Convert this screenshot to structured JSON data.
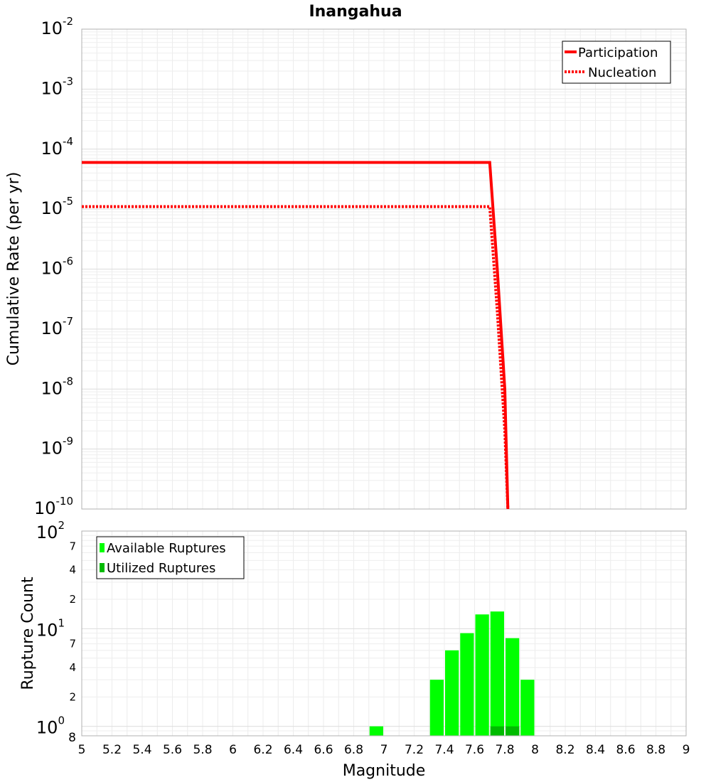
{
  "chart_data": [
    {
      "type": "line",
      "title": "Inangahua",
      "xlabel": "",
      "ylabel": "Cumulative Rate (per yr)",
      "xlim": [
        5,
        9
      ],
      "ylim": [
        1e-10,
        0.01
      ],
      "yscale": "log",
      "grid": true,
      "legend_position": "top-right",
      "y_tick_labels": [
        {
          "base": "10",
          "exp": "-2",
          "value": 0.01
        },
        {
          "base": "10",
          "exp": "-3",
          "value": 0.001
        },
        {
          "base": "10",
          "exp": "-4",
          "value": 0.0001
        },
        {
          "base": "10",
          "exp": "-5",
          "value": 1e-05
        },
        {
          "base": "10",
          "exp": "-6",
          "value": 1e-06
        },
        {
          "base": "10",
          "exp": "-7",
          "value": 1e-07
        },
        {
          "base": "10",
          "exp": "-8",
          "value": 1e-08
        },
        {
          "base": "10",
          "exp": "-9",
          "value": 1e-09
        },
        {
          "base": "10",
          "exp": "-10",
          "value": 1e-10
        }
      ],
      "series": [
        {
          "name": "Participation",
          "style": "solid",
          "color": "#ff0000",
          "x": [
            5.0,
            7.7,
            7.75,
            7.8,
            7.82
          ],
          "y": [
            6e-05,
            6e-05,
            1e-06,
            1e-08,
            1e-10
          ]
        },
        {
          "name": "Nucleation",
          "style": "dotted",
          "color": "#ff0000",
          "x": [
            5.0,
            7.7,
            7.75,
            7.8,
            7.82
          ],
          "y": [
            1.1e-05,
            1.1e-05,
            2e-07,
            2e-09,
            1e-10
          ]
        }
      ]
    },
    {
      "type": "bar",
      "xlabel": "Magnitude",
      "ylabel": "Rupture Count",
      "xlim": [
        5,
        9
      ],
      "ylim": [
        0.8,
        100
      ],
      "yscale": "log",
      "grid": true,
      "legend_position": "top-left",
      "bar_width": 0.1,
      "x_ticks": [
        "5",
        "5.2",
        "5.4",
        "5.6",
        "5.8",
        "6",
        "6.2",
        "6.4",
        "6.6",
        "6.8",
        "7",
        "7.2",
        "7.4",
        "7.6",
        "7.8",
        "8",
        "8.2",
        "8.4",
        "8.6",
        "8.8",
        "9"
      ],
      "y_major_ticks": [
        {
          "base": "10",
          "exp": "2",
          "value": 100
        },
        {
          "base": "10",
          "exp": "1",
          "value": 10
        },
        {
          "base": "10",
          "exp": "0",
          "value": 1
        }
      ],
      "y_minor_ticks": [
        {
          "label": "7",
          "value": 70
        },
        {
          "label": "4",
          "value": 40
        },
        {
          "label": "2",
          "value": 20
        },
        {
          "label": "7",
          "value": 7
        },
        {
          "label": "4",
          "value": 4
        },
        {
          "label": "2",
          "value": 2
        },
        {
          "label": "8",
          "value": 0.8
        }
      ],
      "series": [
        {
          "name": "Available Ruptures",
          "color": "#00ff00",
          "x": [
            6.95,
            7.35,
            7.45,
            7.55,
            7.65,
            7.75,
            7.85,
            7.95
          ],
          "values": [
            1,
            3,
            6,
            9,
            14,
            15,
            8,
            3
          ]
        },
        {
          "name": "Utilized Ruptures",
          "color": "#00bb00",
          "x": [
            7.75,
            7.85
          ],
          "values": [
            1,
            1
          ]
        }
      ]
    }
  ]
}
